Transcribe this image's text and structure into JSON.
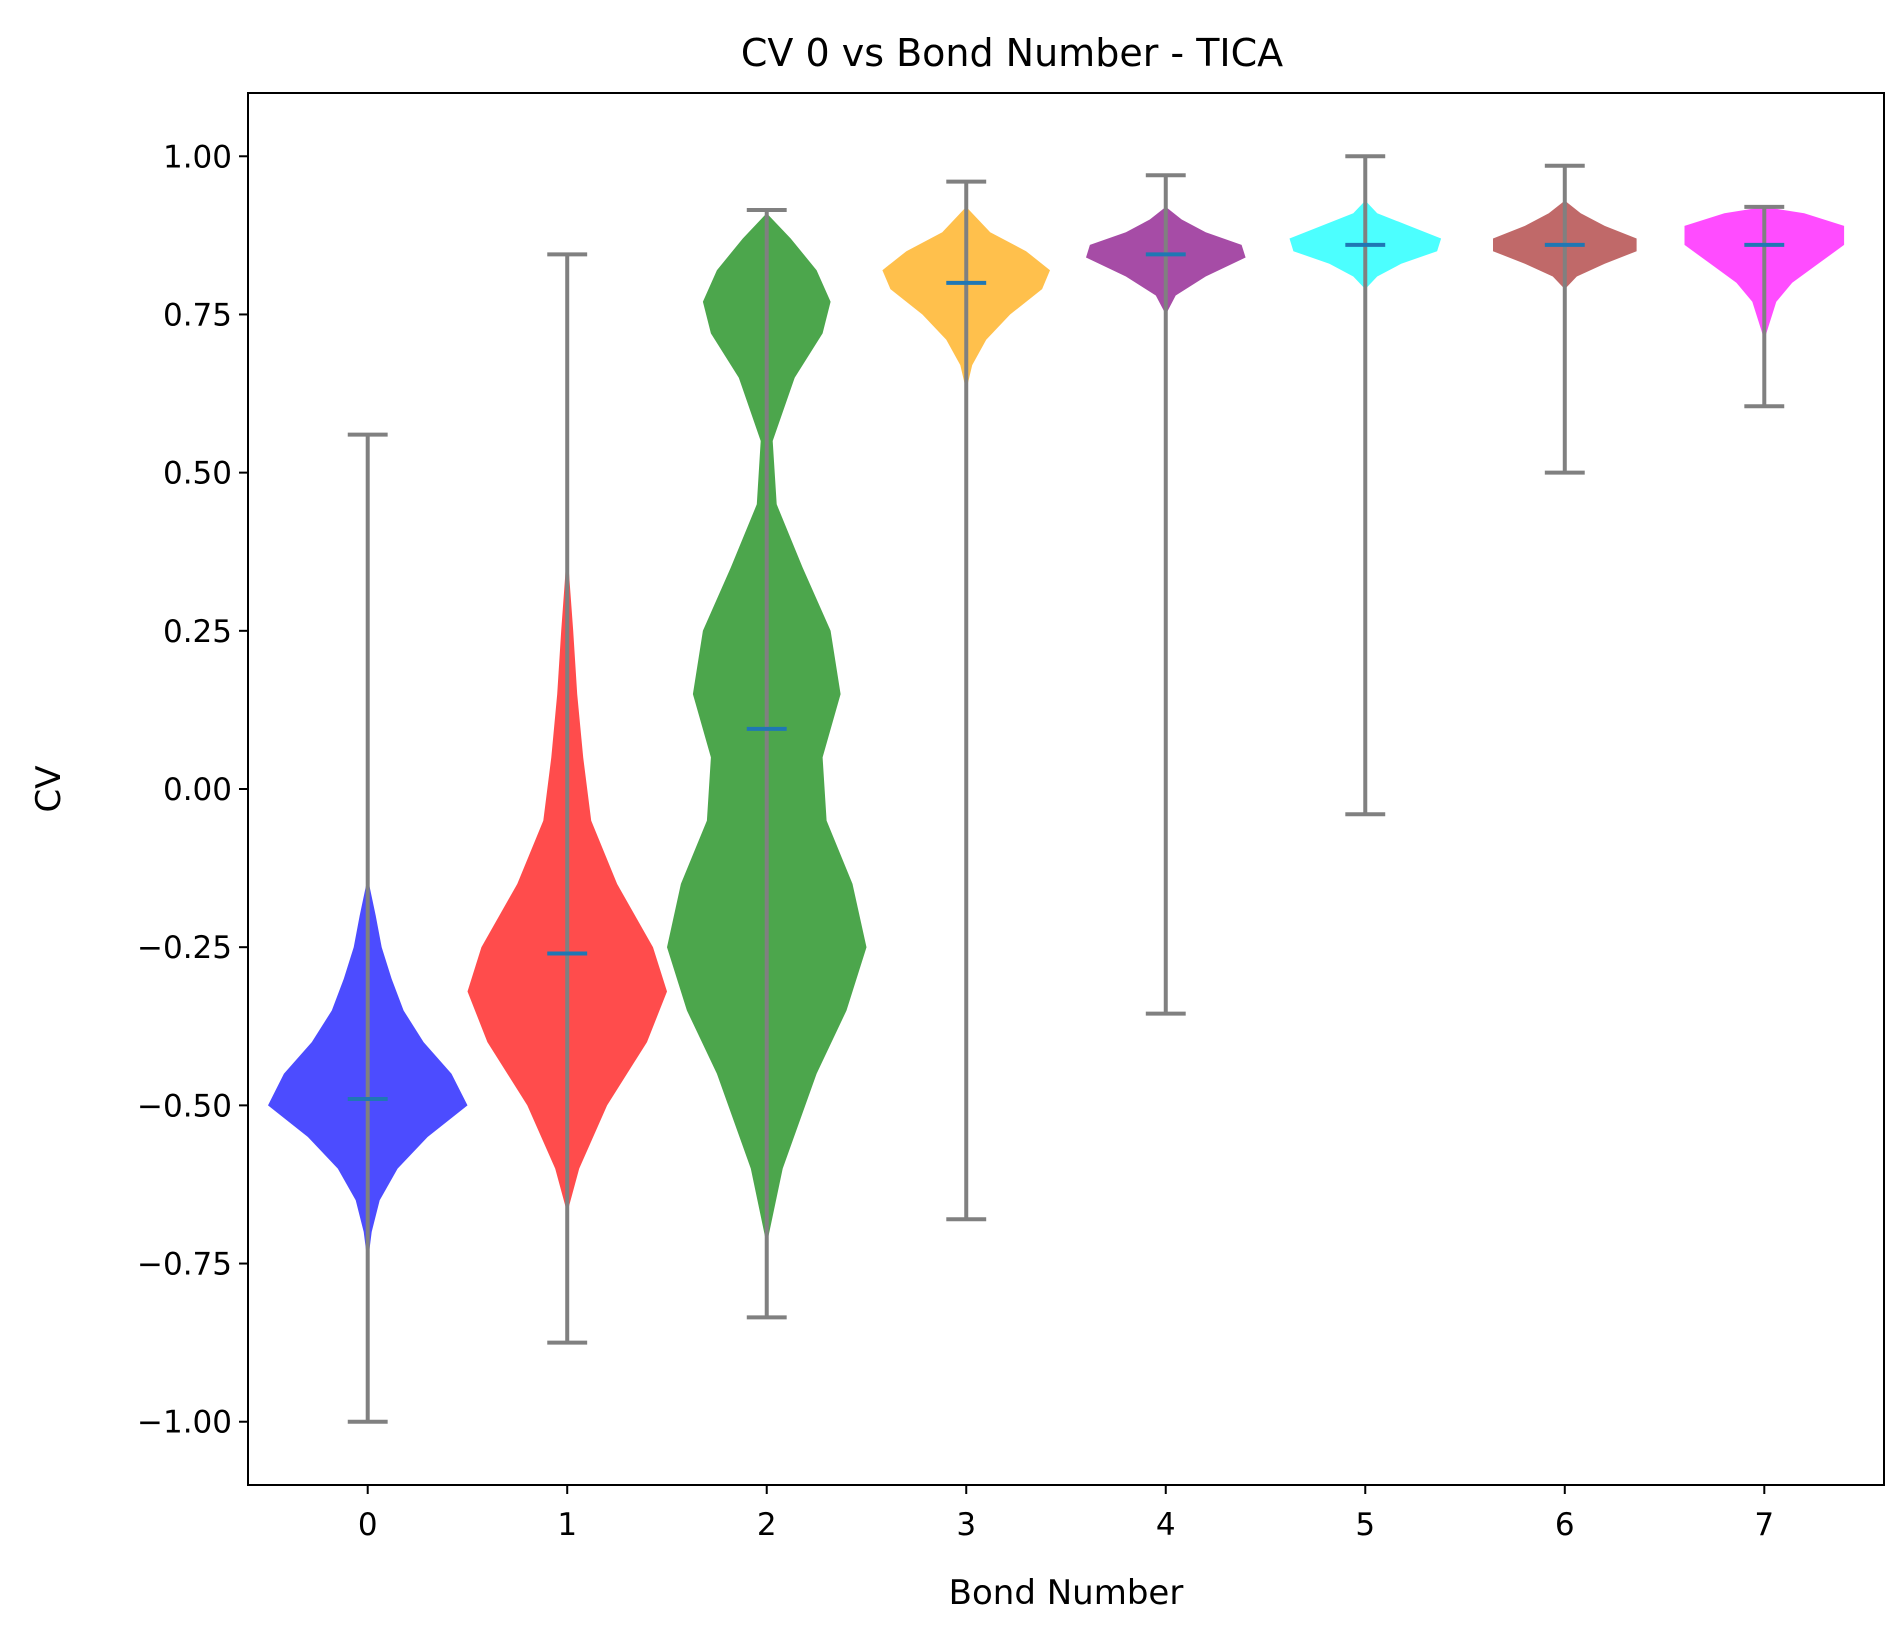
{
  "chart_data": {
    "type": "violin",
    "title": "CV 0 vs Bond Number - TICA",
    "xlabel": "Bond Number",
    "ylabel": "CV",
    "ylim": [
      -1.1,
      1.1
    ],
    "y_ticks": [
      "−1.00",
      "−0.75",
      "−0.50",
      "−0.25",
      "0.00",
      "0.25",
      "0.50",
      "0.75",
      "1.00"
    ],
    "y_tick_values": [
      -1.0,
      -0.75,
      -0.5,
      -0.25,
      0.0,
      0.25,
      0.5,
      0.75,
      1.0
    ],
    "categories": [
      "0",
      "1",
      "2",
      "3",
      "4",
      "5",
      "6",
      "7"
    ],
    "grid": false,
    "legend": "none",
    "whisker_color": "#808080",
    "median_color": "#1f77b4",
    "violins": [
      {
        "category": "0",
        "color": "#0000ff",
        "min": -1.0,
        "max": 0.56,
        "median": -0.49,
        "profile": [
          [
            -0.75,
            0.0
          ],
          [
            -0.7,
            0.02
          ],
          [
            -0.65,
            0.06
          ],
          [
            -0.6,
            0.15
          ],
          [
            -0.55,
            0.3
          ],
          [
            -0.5,
            0.5
          ],
          [
            -0.45,
            0.42
          ],
          [
            -0.4,
            0.28
          ],
          [
            -0.35,
            0.18
          ],
          [
            -0.3,
            0.12
          ],
          [
            -0.25,
            0.07
          ],
          [
            -0.2,
            0.04
          ],
          [
            -0.14,
            0.0
          ]
        ]
      },
      {
        "category": "1",
        "color": "#ff0000",
        "min": -0.875,
        "max": 0.845,
        "median": -0.26,
        "profile": [
          [
            -0.67,
            0.0
          ],
          [
            -0.6,
            0.06
          ],
          [
            -0.5,
            0.2
          ],
          [
            -0.4,
            0.4
          ],
          [
            -0.32,
            0.5
          ],
          [
            -0.25,
            0.43
          ],
          [
            -0.15,
            0.25
          ],
          [
            -0.05,
            0.12
          ],
          [
            0.05,
            0.08
          ],
          [
            0.15,
            0.05
          ],
          [
            0.25,
            0.03
          ],
          [
            0.38,
            0.0
          ]
        ]
      },
      {
        "category": "2",
        "color": "#008000",
        "min": -0.835,
        "max": 0.915,
        "median": 0.095,
        "profile": [
          [
            -0.72,
            0.0
          ],
          [
            -0.6,
            0.08
          ],
          [
            -0.45,
            0.25
          ],
          [
            -0.35,
            0.4
          ],
          [
            -0.25,
            0.5
          ],
          [
            -0.15,
            0.43
          ],
          [
            -0.05,
            0.3
          ],
          [
            0.05,
            0.28
          ],
          [
            0.15,
            0.37
          ],
          [
            0.25,
            0.32
          ],
          [
            0.35,
            0.18
          ],
          [
            0.45,
            0.05
          ],
          [
            0.55,
            0.03
          ],
          [
            0.65,
            0.14
          ],
          [
            0.72,
            0.28
          ],
          [
            0.77,
            0.32
          ],
          [
            0.82,
            0.25
          ],
          [
            0.87,
            0.12
          ],
          [
            0.91,
            0.0
          ]
        ]
      },
      {
        "category": "3",
        "color": "#ffa500",
        "min": -0.68,
        "max": 0.96,
        "median": 0.8,
        "profile": [
          [
            0.63,
            0.0
          ],
          [
            0.67,
            0.03
          ],
          [
            0.71,
            0.1
          ],
          [
            0.75,
            0.22
          ],
          [
            0.79,
            0.38
          ],
          [
            0.82,
            0.42
          ],
          [
            0.85,
            0.3
          ],
          [
            0.88,
            0.12
          ],
          [
            0.92,
            0.0
          ]
        ]
      },
      {
        "category": "4",
        "color": "#800080",
        "min": -0.355,
        "max": 0.97,
        "median": 0.845,
        "profile": [
          [
            0.75,
            0.0
          ],
          [
            0.78,
            0.05
          ],
          [
            0.81,
            0.2
          ],
          [
            0.84,
            0.4
          ],
          [
            0.86,
            0.38
          ],
          [
            0.88,
            0.2
          ],
          [
            0.9,
            0.08
          ],
          [
            0.92,
            0.0
          ]
        ]
      },
      {
        "category": "5",
        "color": "#00ffff",
        "min": -0.04,
        "max": 1.0,
        "median": 0.86,
        "profile": [
          [
            0.79,
            0.0
          ],
          [
            0.81,
            0.06
          ],
          [
            0.83,
            0.18
          ],
          [
            0.85,
            0.36
          ],
          [
            0.87,
            0.38
          ],
          [
            0.89,
            0.22
          ],
          [
            0.91,
            0.06
          ],
          [
            0.93,
            0.0
          ]
        ]
      },
      {
        "category": "6",
        "color": "#a52a2a",
        "min": 0.5,
        "max": 0.985,
        "median": 0.86,
        "profile": [
          [
            0.79,
            0.0
          ],
          [
            0.81,
            0.06
          ],
          [
            0.83,
            0.2
          ],
          [
            0.85,
            0.36
          ],
          [
            0.87,
            0.36
          ],
          [
            0.89,
            0.2
          ],
          [
            0.91,
            0.08
          ],
          [
            0.93,
            0.0
          ]
        ]
      },
      {
        "category": "7",
        "color": "#ff00ff",
        "min": 0.605,
        "max": 0.92,
        "median": 0.86,
        "profile": [
          [
            0.71,
            0.0
          ],
          [
            0.74,
            0.03
          ],
          [
            0.77,
            0.06
          ],
          [
            0.8,
            0.14
          ],
          [
            0.83,
            0.27
          ],
          [
            0.86,
            0.4
          ],
          [
            0.89,
            0.4
          ],
          [
            0.91,
            0.2
          ],
          [
            0.92,
            0.0
          ]
        ]
      }
    ]
  }
}
